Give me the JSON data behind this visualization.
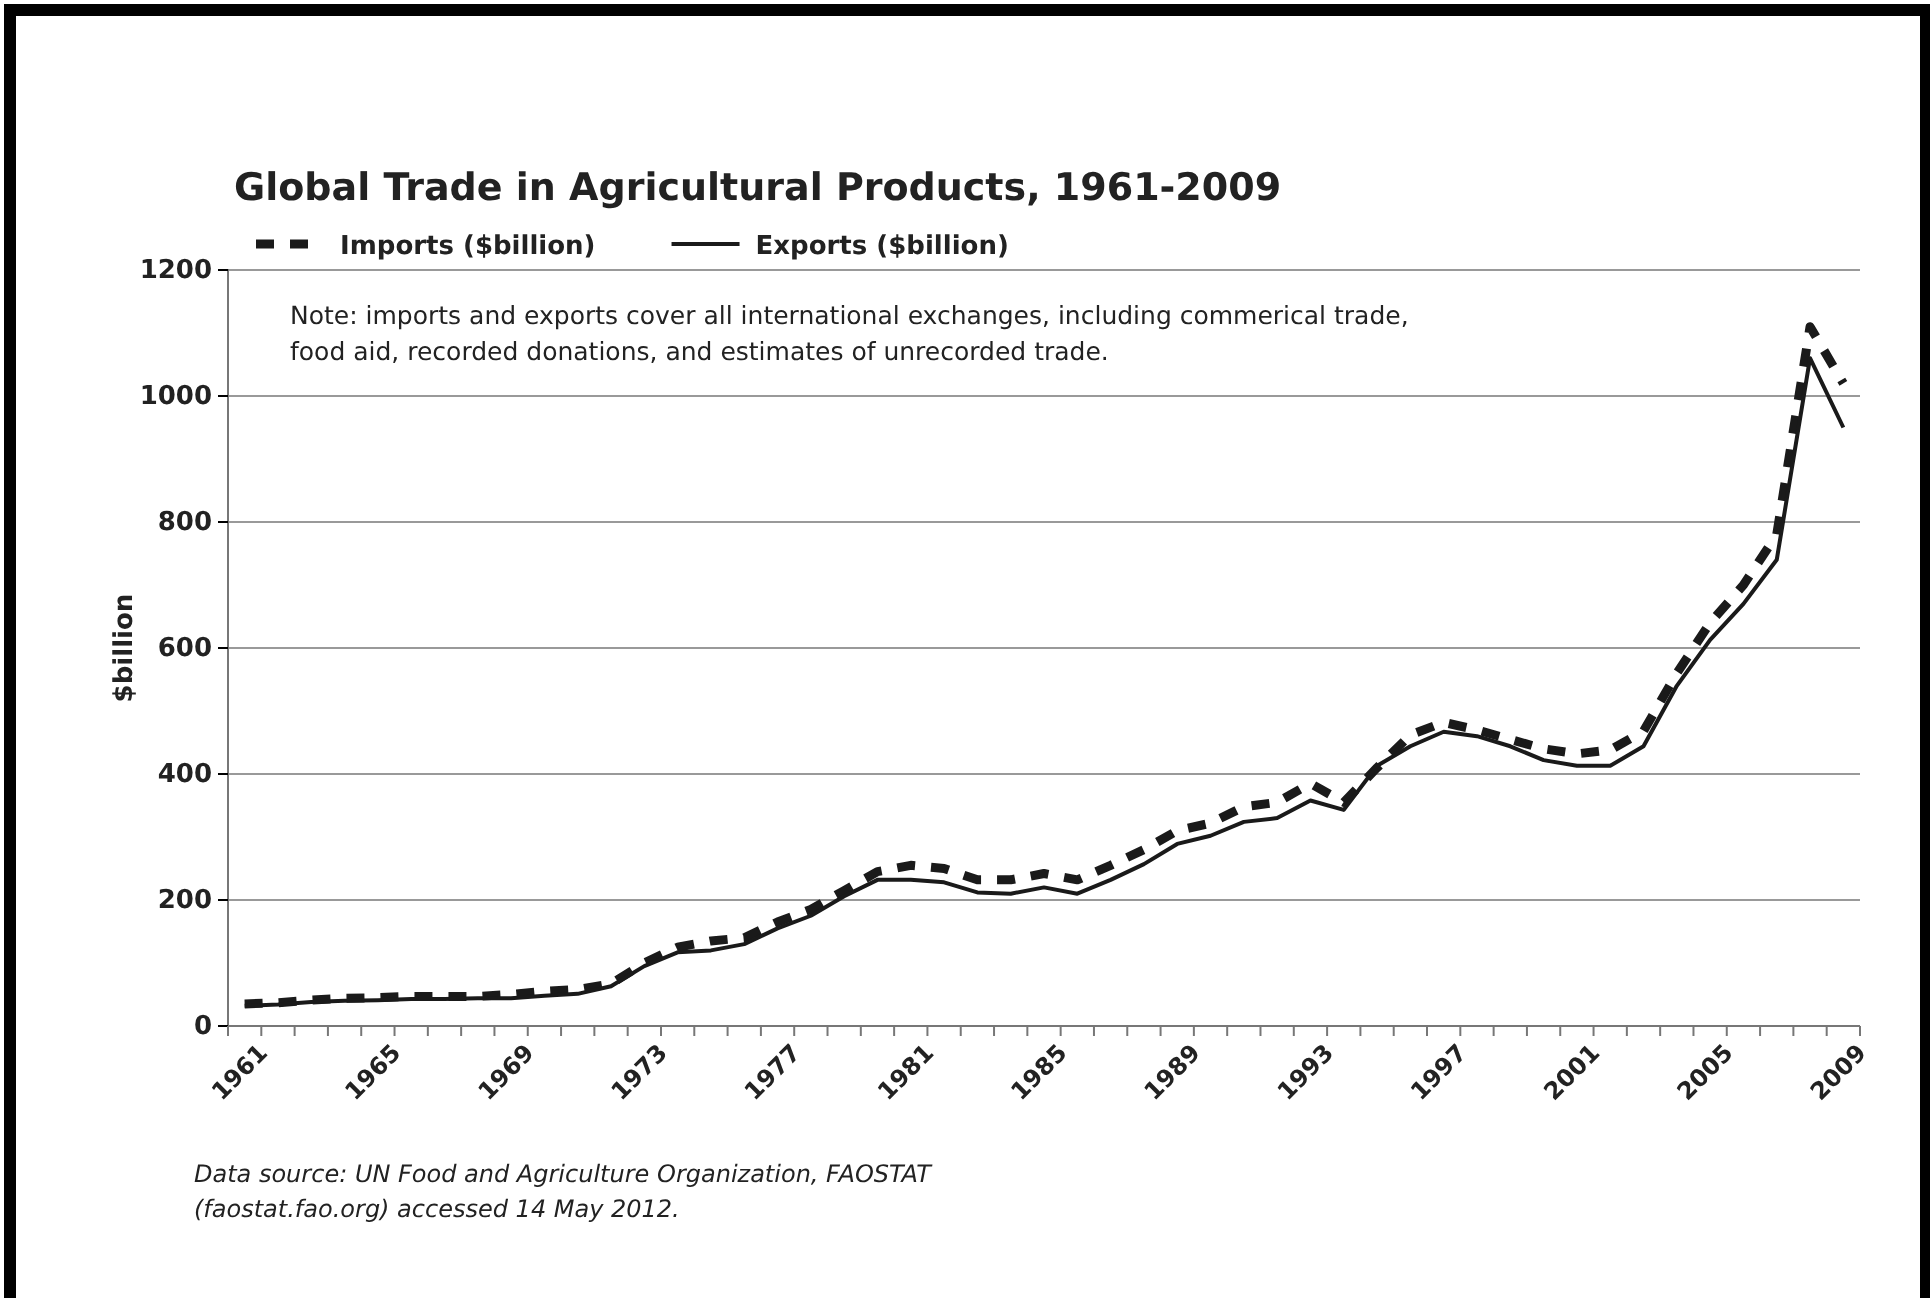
{
  "chart_data": {
    "type": "line",
    "title": "Global Trade in Agricultural Products, 1961-2009",
    "ylabel": "$billion",
    "categories": [
      "1961",
      null,
      null,
      null,
      "1965",
      null,
      null,
      null,
      "1969",
      null,
      null,
      null,
      "1973",
      null,
      null,
      null,
      "1977",
      null,
      null,
      null,
      "1981",
      null,
      null,
      null,
      "1985",
      null,
      null,
      null,
      "1989",
      null,
      null,
      null,
      "1993",
      null,
      null,
      null,
      "1997",
      null,
      null,
      null,
      "2001",
      null,
      null,
      null,
      "2005",
      null,
      null,
      null,
      "2009"
    ],
    "series": [
      {
        "name": "Imports ($billion)",
        "color": "#1a1a1a",
        "line_style": "dashed",
        "values": [
          35,
          37,
          41,
          44,
          45,
          47,
          47,
          47,
          50,
          55,
          58,
          67,
          100,
          125,
          135,
          140,
          165,
          185,
          215,
          245,
          255,
          250,
          232,
          232,
          242,
          232,
          255,
          280,
          310,
          322,
          348,
          355,
          385,
          355,
          410,
          462,
          482,
          470,
          455,
          440,
          432,
          438,
          468,
          560,
          640,
          700,
          780,
          1110,
          1020
        ]
      },
      {
        "name": "Exports ($billion)",
        "color": "#1a1a1a",
        "line_style": "solid",
        "values": [
          32,
          34,
          38,
          40,
          41,
          43,
          43,
          44,
          44,
          48,
          51,
          63,
          95,
          117,
          120,
          130,
          155,
          175,
          206,
          232,
          232,
          228,
          212,
          210,
          220,
          210,
          232,
          257,
          289,
          302,
          324,
          330,
          358,
          343,
          413,
          444,
          467,
          460,
          444,
          422,
          413,
          413,
          444,
          540,
          613,
          670,
          740,
          1060,
          950
        ]
      }
    ],
    "ylim": [
      0,
      1200
    ],
    "yticks": [
      0,
      200,
      400,
      600,
      800,
      1000,
      1200
    ],
    "grid": "y",
    "legend": "top left",
    "annotations": [
      "Note: imports and exports cover all international exchanges, including commerical trade, food aid, recorded donations, and estimates of unrecorded trade.",
      "Data source: UN Food and Agriculture Organization, FAOSTAT (faostat.fao.org) accessed 14 May 2012."
    ]
  }
}
